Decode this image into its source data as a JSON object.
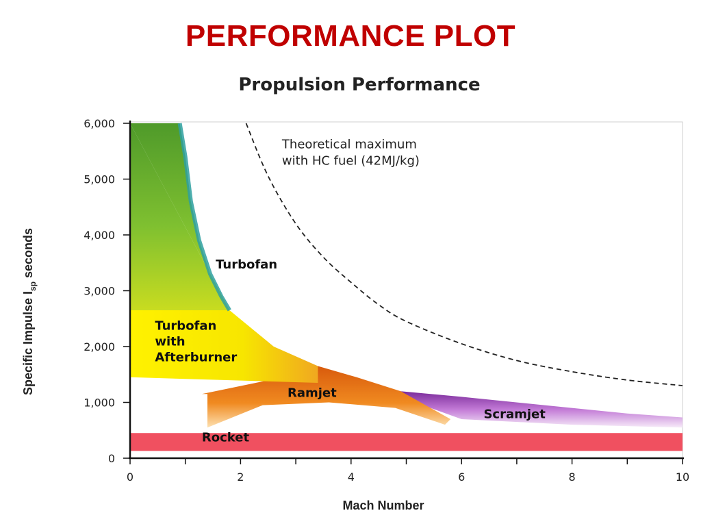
{
  "slide": {
    "title": "PERFORMANCE PLOT"
  },
  "chart_data": {
    "type": "area",
    "title": "Propulsion Performance",
    "xlabel": "Mach Number",
    "ylabel": "Specific Impulse I",
    "ylabel_subscript": "sp",
    "ylabel_suffix": " seconds",
    "xlim": [
      0,
      10
    ],
    "ylim": [
      0,
      6000
    ],
    "x_ticks": [
      "0",
      "2",
      "4",
      "6",
      "8",
      "10"
    ],
    "y_ticks": [
      "0",
      "1,000",
      "2,000",
      "3,000",
      "4,000",
      "5,000",
      "6,000"
    ],
    "grid": false,
    "colors": {
      "turbofan_top": "#5a9e28",
      "turbofan_edge": "#2ea0a0",
      "afterburner": "#f2e200",
      "ramjet": "#e06010",
      "scramjet": "#7a2a9a",
      "rocket": "#f05060",
      "title_red": "#c00000"
    },
    "series": [
      {
        "name": "Turbofan",
        "regions": [
          {
            "x": [
              0,
              0.9,
              1.0,
              1.1,
              1.25,
              1.45,
              1.65,
              1.8
            ],
            "y": [
              6000,
              6000,
              5400,
              4600,
              3900,
              3300,
              2900,
              2650
            ]
          },
          {
            "x": [
              0,
              0,
              1.8
            ],
            "y": [
              6000,
              2650,
              2650
            ]
          }
        ]
      },
      {
        "name": "Turbofan with Afterburner",
        "regions": [
          {
            "x": [
              0,
              1.8,
              2.6,
              3.4,
              3.4,
              0
            ],
            "y": [
              2900,
              2650,
              2000,
              1650,
              1350,
              1450
            ]
          }
        ]
      },
      {
        "name": "Ramjet",
        "regions": [
          {
            "x": [
              1.3,
              3.0,
              3.4,
              4.1,
              4.9,
              5.8,
              5.7,
              4.8,
              3.6,
              2.4,
              1.4,
              1.4
            ],
            "y": [
              1150,
              1500,
              1650,
              1450,
              1200,
              700,
              600,
              900,
              1000,
              950,
              550,
              1150
            ]
          }
        ]
      },
      {
        "name": "Scramjet",
        "regions": [
          {
            "x": [
              4.9,
              6.0,
              7.5,
              9.0,
              10.0,
              10.0,
              8.0,
              6.0,
              5.3
            ],
            "y": [
              1200,
              1100,
              950,
              800,
              730,
              550,
              600,
              700,
              950
            ]
          }
        ]
      },
      {
        "name": "Rocket",
        "regions": [
          {
            "x": [
              0,
              10,
              10,
              0
            ],
            "y": [
              450,
              450,
              130,
              130
            ]
          }
        ]
      },
      {
        "name": "Theoretical maximum with HC fuel (42MJ/kg)",
        "line_style": "dashed",
        "x": [
          2.1,
          2.5,
          3.0,
          3.5,
          4.0,
          4.5,
          5.0,
          6.0,
          7.0,
          8.0,
          9.0,
          10.0
        ],
        "y": [
          6000,
          5050,
          4200,
          3600,
          3150,
          2750,
          2450,
          2050,
          1750,
          1550,
          1400,
          1300
        ]
      }
    ],
    "annotations": [
      {
        "lines": [
          "Theoretical maximum",
          "with HC fuel (42MJ/kg)"
        ],
        "x": 2.75,
        "y": 5550
      },
      {
        "lines": [
          "Turbofan"
        ],
        "x": 1.55,
        "y": 3400
      },
      {
        "lines": [
          "Turbofan",
          "with",
          "Afterburner"
        ],
        "x": 0.45,
        "y": 2300
      },
      {
        "lines": [
          "Ramjet"
        ],
        "x": 2.85,
        "y": 1100
      },
      {
        "lines": [
          "Scramjet"
        ],
        "x": 6.4,
        "y": 720
      },
      {
        "lines": [
          "Rocket"
        ],
        "x": 1.3,
        "y": 300
      }
    ]
  }
}
